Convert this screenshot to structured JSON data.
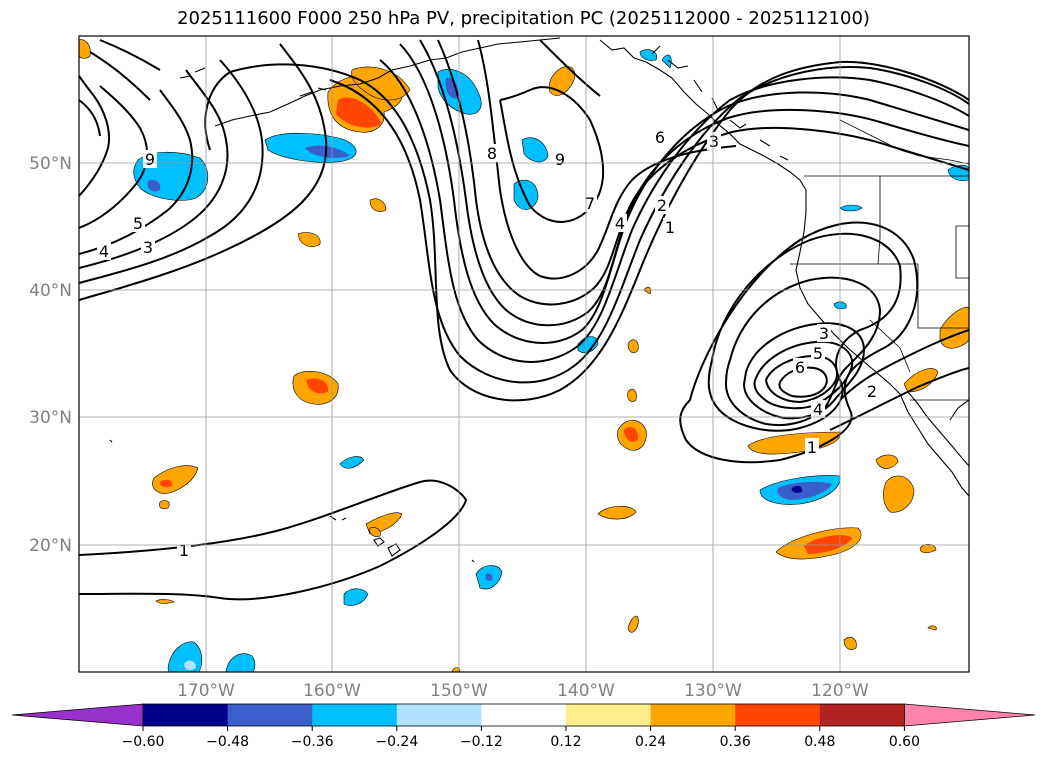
{
  "title": "2025111600 F000 250 hPa PV, precipitation PC (2025112000 - 2025112100)",
  "map": {
    "projection": "equirectangular",
    "lon_range": [
      -180,
      -110
    ],
    "lat_range": [
      10,
      60
    ],
    "lat_labels": [
      "50°N",
      "40°N",
      "30°N",
      "20°N"
    ],
    "lon_labels": [
      "170°W",
      "160°W",
      "150°W",
      "140°W",
      "130°W",
      "120°W"
    ],
    "contour_labels": [
      "9",
      "5",
      "4",
      "3",
      "8",
      "9",
      "6",
      "3",
      "2",
      "1",
      "7",
      "4",
      "3",
      "5",
      "6",
      "4",
      "2",
      "1",
      "1"
    ]
  },
  "colorbar": {
    "tick_labels": [
      "−0.60",
      "−0.48",
      "−0.36",
      "−0.24",
      "−0.12",
      "0.12",
      "0.24",
      "0.36",
      "0.48",
      "0.60"
    ],
    "colors": [
      "#9932cc",
      "#00008b",
      "#3a5fcd",
      "#00bfff",
      "#b0e2ff",
      "#ffffff",
      "#ffec8b",
      "#ffa500",
      "#ff4500",
      "#b22222",
      "#ff82ab"
    ]
  }
}
